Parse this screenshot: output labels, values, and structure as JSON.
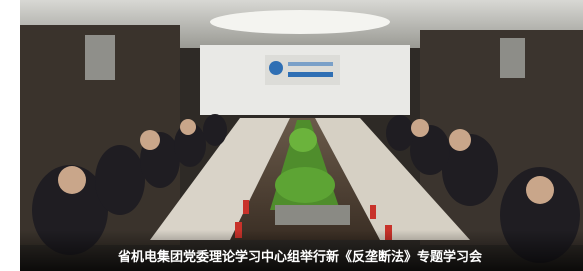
{
  "caption": "省机电集团党委理论学习中心组举行新《反垄断法》专题学习会"
}
